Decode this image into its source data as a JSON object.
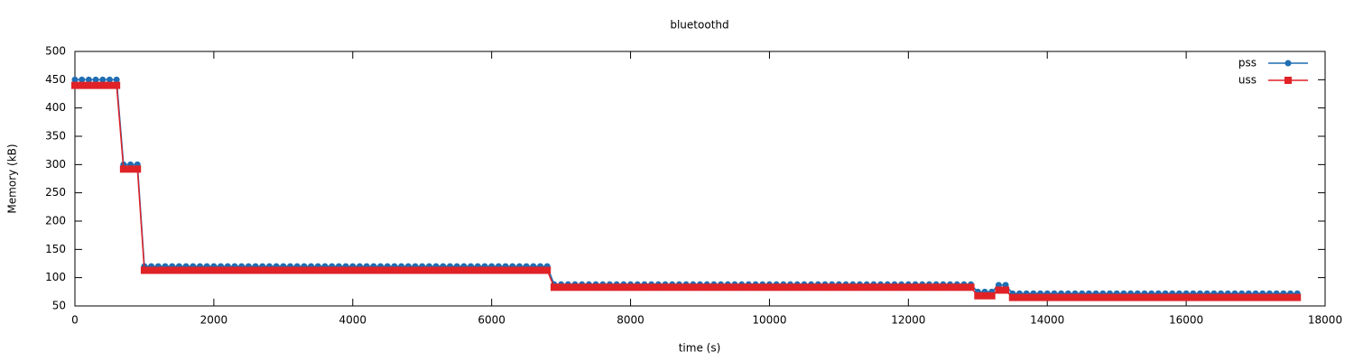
{
  "chart_data": {
    "type": "line",
    "title": "bluetoothd",
    "x_label": "time (s)",
    "y_label": "Memory (kB)",
    "x": [
      0,
      100,
      200,
      300,
      400,
      500,
      600,
      700,
      800,
      900,
      1000,
      1100,
      1200,
      1300,
      1400,
      1500,
      1600,
      1700,
      1800,
      1900,
      2000,
      2100,
      2200,
      2300,
      2400,
      2500,
      2600,
      2700,
      2800,
      2900,
      3000,
      3100,
      3200,
      3300,
      3400,
      3500,
      3600,
      3700,
      3800,
      3900,
      4000,
      4100,
      4200,
      4300,
      4400,
      4500,
      4600,
      4700,
      4800,
      4900,
      5000,
      5100,
      5200,
      5300,
      5400,
      5500,
      5600,
      5700,
      5800,
      5900,
      6000,
      6100,
      6200,
      6300,
      6400,
      6500,
      6600,
      6700,
      6800,
      6900,
      7000,
      7100,
      7200,
      7300,
      7400,
      7500,
      7600,
      7700,
      7800,
      7900,
      8000,
      8100,
      8200,
      8300,
      8400,
      8500,
      8600,
      8700,
      8800,
      8900,
      9000,
      9100,
      9200,
      9300,
      9400,
      9500,
      9600,
      9700,
      9800,
      9900,
      10000,
      10100,
      10200,
      10300,
      10400,
      10500,
      10600,
      10700,
      10800,
      10900,
      11000,
      11100,
      11200,
      11300,
      11400,
      11500,
      11600,
      11700,
      11800,
      11900,
      12000,
      12100,
      12200,
      12300,
      12400,
      12500,
      12600,
      12700,
      12800,
      12900,
      13000,
      13100,
      13200,
      13300,
      13400,
      13500,
      13600,
      13700,
      13800,
      13900,
      14000,
      14100,
      14200,
      14300,
      14400,
      14500,
      14600,
      14700,
      14800,
      14900,
      15000,
      15100,
      15200,
      15300,
      15400,
      15500,
      15600,
      15700,
      15800,
      15900,
      16000,
      16100,
      16200,
      16300,
      16400,
      16500,
      16600,
      16700,
      16800,
      16900,
      17000,
      17100,
      17200,
      17300,
      17400,
      17500,
      17600
    ],
    "series": [
      {
        "name": "pss",
        "color": "#1f6db3",
        "marker": "circle",
        "values": [
          450,
          450,
          450,
          450,
          450,
          450,
          450,
          300,
          300,
          300,
          120,
          120,
          120,
          120,
          120,
          120,
          120,
          120,
          120,
          120,
          120,
          120,
          120,
          120,
          120,
          120,
          120,
          120,
          120,
          120,
          120,
          120,
          120,
          120,
          120,
          120,
          120,
          120,
          120,
          120,
          120,
          120,
          120,
          120,
          120,
          120,
          120,
          120,
          120,
          120,
          120,
          120,
          120,
          120,
          120,
          120,
          120,
          120,
          120,
          120,
          120,
          120,
          120,
          120,
          120,
          120,
          120,
          120,
          120,
          88,
          88,
          88,
          88,
          88,
          88,
          88,
          88,
          88,
          88,
          88,
          88,
          88,
          88,
          88,
          88,
          88,
          88,
          88,
          88,
          88,
          88,
          88,
          88,
          88,
          88,
          88,
          88,
          88,
          88,
          88,
          88,
          88,
          88,
          88,
          88,
          88,
          88,
          88,
          88,
          88,
          88,
          88,
          88,
          88,
          88,
          88,
          88,
          88,
          88,
          88,
          88,
          88,
          88,
          88,
          88,
          88,
          88,
          88,
          88,
          88,
          75,
          75,
          75,
          87,
          87,
          72,
          72,
          72,
          72,
          72,
          72,
          72,
          72,
          72,
          72,
          72,
          72,
          72,
          72,
          72,
          72,
          72,
          72,
          72,
          72,
          72,
          72,
          72,
          72,
          72,
          72,
          72,
          72,
          72,
          72,
          72,
          72,
          72,
          72,
          72,
          72,
          72,
          72,
          72,
          72,
          72,
          72
        ]
      },
      {
        "name": "uss",
        "color": "#e02227",
        "marker": "square",
        "values": [
          440,
          440,
          440,
          440,
          440,
          440,
          440,
          292,
          292,
          292,
          113,
          113,
          113,
          113,
          113,
          113,
          113,
          113,
          113,
          113,
          113,
          113,
          113,
          113,
          113,
          113,
          113,
          113,
          113,
          113,
          113,
          113,
          113,
          113,
          113,
          113,
          113,
          113,
          113,
          113,
          113,
          113,
          113,
          113,
          113,
          113,
          113,
          113,
          113,
          113,
          113,
          113,
          113,
          113,
          113,
          113,
          113,
          113,
          113,
          113,
          113,
          113,
          113,
          113,
          113,
          113,
          113,
          113,
          113,
          83,
          83,
          83,
          83,
          83,
          83,
          83,
          83,
          83,
          83,
          83,
          83,
          83,
          83,
          83,
          83,
          83,
          83,
          83,
          83,
          83,
          83,
          83,
          83,
          83,
          83,
          83,
          83,
          83,
          83,
          83,
          83,
          83,
          83,
          83,
          83,
          83,
          83,
          83,
          83,
          83,
          83,
          83,
          83,
          83,
          83,
          83,
          83,
          83,
          83,
          83,
          83,
          83,
          83,
          83,
          83,
          83,
          83,
          83,
          83,
          83,
          68,
          68,
          68,
          78,
          78,
          65,
          65,
          65,
          65,
          65,
          65,
          65,
          65,
          65,
          65,
          65,
          65,
          65,
          65,
          65,
          65,
          65,
          65,
          65,
          65,
          65,
          65,
          65,
          65,
          65,
          65,
          65,
          65,
          65,
          65,
          65,
          65,
          65,
          65,
          65,
          65,
          65,
          65,
          65,
          65,
          65,
          65
        ]
      }
    ],
    "xlim": [
      0,
      18000
    ],
    "xticks": [
      0,
      2000,
      4000,
      6000,
      8000,
      10000,
      12000,
      14000,
      16000,
      18000
    ],
    "ylim": [
      50,
      500
    ],
    "yticks": [
      50,
      100,
      150,
      200,
      250,
      300,
      350,
      400,
      450,
      500
    ],
    "grid": false,
    "legend": "top-right"
  }
}
